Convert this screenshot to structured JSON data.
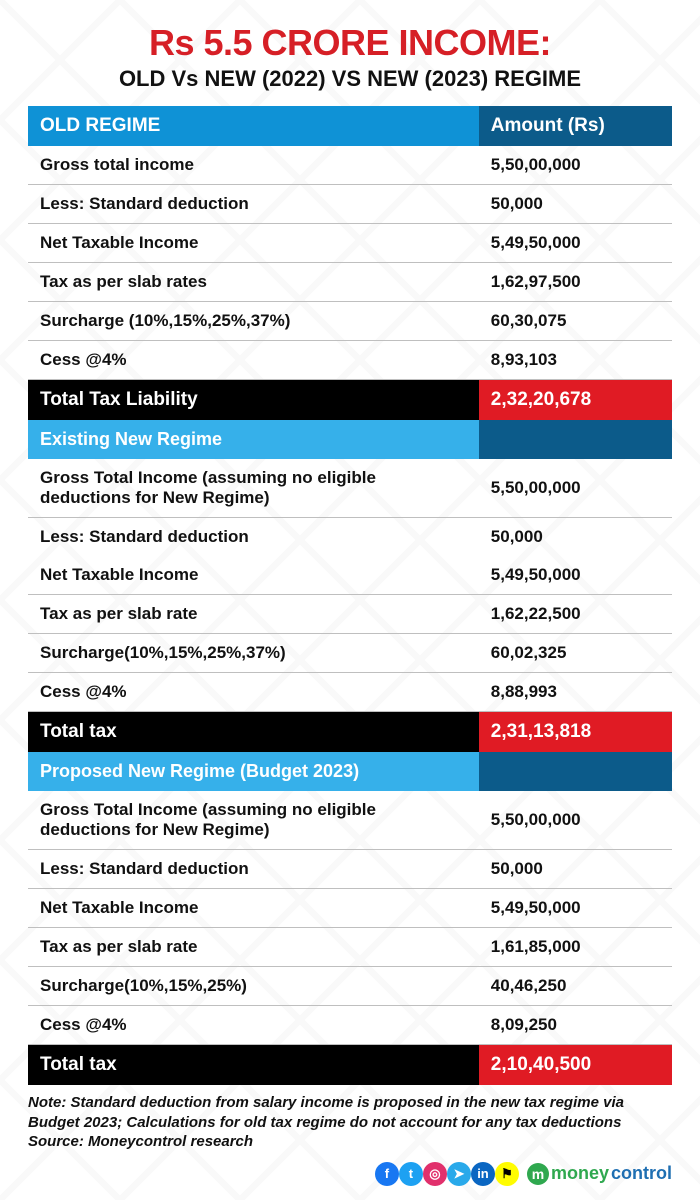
{
  "colors": {
    "title": "#d61f26",
    "header_label_bg": "#0f92d6",
    "header_val_bg": "#0c5b8a",
    "subheader_label_bg": "#36b0ea",
    "subheader_val_bg": "#0c5b8a",
    "total_label_bg": "#000000",
    "total_val_bg": "#e01b24",
    "row_border": "#bfbfbf",
    "text": "#111111",
    "note": "#111111",
    "brand_money": "#2fa84f",
    "brand_control": "#1f6fb2"
  },
  "title": "Rs 5.5 CRORE INCOME:",
  "subtitle": "OLD Vs NEW (2022) VS NEW (2023) REGIME",
  "sections": [
    {
      "type": "header",
      "label": "OLD REGIME",
      "val": "Amount (Rs)"
    },
    {
      "type": "rows",
      "rows": [
        {
          "label": "Gross total income",
          "val": "5,50,00,000"
        },
        {
          "label": "Less: Standard deduction",
          "val": "50,000"
        },
        {
          "label": "Net Taxable Income",
          "val": "5,49,50,000"
        },
        {
          "label": "Tax as per slab rates",
          "val": "1,62,97,500"
        },
        {
          "label": "Surcharge (10%,15%,25%,37%)",
          "val": "60,30,075"
        },
        {
          "label": "Cess @4%",
          "val": "8,93,103"
        }
      ]
    },
    {
      "type": "total",
      "label": "Total Tax Liability",
      "val": "2,32,20,678"
    },
    {
      "type": "subheader",
      "label": "Existing New Regime",
      "val": ""
    },
    {
      "type": "rows",
      "rows": [
        {
          "label": "Gross Total Income (assuming no eligible deductions for New Regime)",
          "val": "5,50,00,000"
        },
        {
          "label": "Less: Standard deduction",
          "val": "50,000",
          "noborder": true
        },
        {
          "label": "Net Taxable Income",
          "val": "5,49,50,000"
        },
        {
          "label": "Tax as per slab rate",
          "val": "1,62,22,500"
        },
        {
          "label": "Surcharge(10%,15%,25%,37%)",
          "val": "60,02,325"
        },
        {
          "label": "Cess @4%",
          "val": "8,88,993"
        }
      ]
    },
    {
      "type": "total",
      "label": "Total tax",
      "val": "2,31,13,818"
    },
    {
      "type": "subheader",
      "label": "Proposed New Regime (Budget 2023)",
      "val": ""
    },
    {
      "type": "rows",
      "rows": [
        {
          "label": "Gross Total Income (assuming no eligible deductions for New Regime)",
          "val": "5,50,00,000"
        },
        {
          "label": "Less: Standard deduction",
          "val": "50,000"
        },
        {
          "label": "Net Taxable Income",
          "val": "5,49,50,000"
        },
        {
          "label": "Tax as per slab rate",
          "val": "1,61,85,000"
        },
        {
          "label": "Surcharge(10%,15%,25%)",
          "val": "40,46,250"
        },
        {
          "label": "Cess @4%",
          "val": "8,09,250"
        }
      ]
    },
    {
      "type": "total",
      "label": "Total tax",
      "val": "2,10,40,500"
    }
  ],
  "note": "Note: Standard deduction from salary income is proposed in the new tax regime via Budget 2023; Calculations for old tax regime do not account for any tax deductions\nSource: Moneycontrol research",
  "social": [
    {
      "name": "facebook-icon",
      "glyph": "f",
      "bg": "#1877f2"
    },
    {
      "name": "twitter-icon",
      "glyph": "t",
      "bg": "#1da1f2"
    },
    {
      "name": "instagram-icon",
      "glyph": "◎",
      "bg": "#e1306c"
    },
    {
      "name": "telegram-icon",
      "glyph": "➤",
      "bg": "#29a9ea"
    },
    {
      "name": "linkedin-icon",
      "glyph": "in",
      "bg": "#0a66c2"
    },
    {
      "name": "snapchat-icon",
      "glyph": "⚑",
      "bg": "#fffc00"
    }
  ],
  "brand": {
    "m": "m",
    "money": "money",
    "control": "control"
  }
}
